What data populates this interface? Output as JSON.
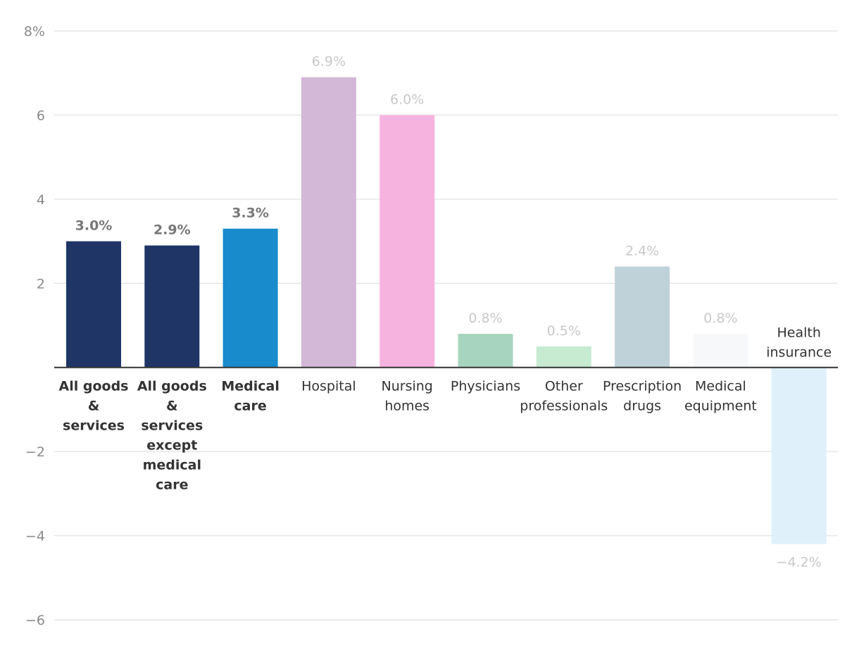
{
  "chart_data": {
    "type": "bar",
    "categories": [
      "All goods & services",
      "All goods & services except medical care",
      "Medical care",
      "Hospital",
      "Nursing homes",
      "Physicians",
      "Other professionals",
      "Prescription drugs",
      "Medical equipment",
      "Health insurance"
    ],
    "category_lines": [
      [
        "All goods",
        "&",
        "services"
      ],
      [
        "All goods",
        "&",
        "services",
        "except",
        "medical",
        "care"
      ],
      [
        "Medical",
        "care"
      ],
      [
        "Hospital"
      ],
      [
        "Nursing",
        "homes"
      ],
      [
        "Physicians"
      ],
      [
        "Other",
        "professionals"
      ],
      [
        "Prescription",
        "drugs"
      ],
      [
        "Medical",
        "equipment"
      ],
      [
        "Health",
        "insurance"
      ]
    ],
    "values": [
      3.0,
      2.9,
      3.3,
      6.9,
      6.0,
      0.8,
      0.5,
      2.4,
      0.8,
      -4.2
    ],
    "value_labels": [
      "3.0%",
      "2.9%",
      "3.3%",
      "6.9%",
      "6.0%",
      "0.8%",
      "0.5%",
      "2.4%",
      "0.8%",
      "−4.2%"
    ],
    "bold": [
      true,
      true,
      true,
      false,
      false,
      false,
      false,
      false,
      false,
      false
    ],
    "colors": [
      "#1f3566",
      "#1f3566",
      "#178bcc",
      "#d4b8d8",
      "#f7b3df",
      "#a7d4bf",
      "#c7ebd1",
      "#bfd1d9",
      "#f6f8fa",
      "#dff0fb"
    ],
    "ylim": [
      -6,
      8
    ],
    "yticks": [
      -6,
      -4,
      -2,
      2,
      4,
      6,
      8
    ],
    "ytick_labels": [
      "−6",
      "−4",
      "−2",
      "2",
      "4",
      "6",
      "8%"
    ],
    "title": "",
    "xlabel": "",
    "ylabel": "",
    "grid": true,
    "legend": "none"
  }
}
